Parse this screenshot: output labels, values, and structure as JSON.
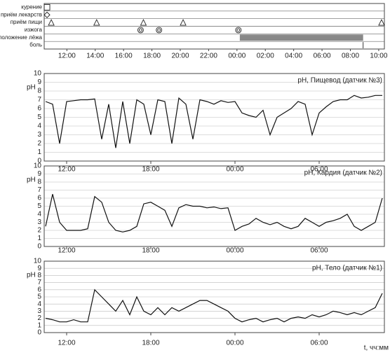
{
  "chart_data": [
    {
      "type": "events",
      "xlim": [
        10.4,
        34.4
      ],
      "xticks": [
        {
          "value": 12,
          "label": "12:00"
        },
        {
          "value": 14,
          "label": "14:00"
        },
        {
          "value": 16,
          "label": "16:00"
        },
        {
          "value": 18,
          "label": "18:00"
        },
        {
          "value": 20,
          "label": "20:00"
        },
        {
          "value": 22,
          "label": "22:00"
        },
        {
          "value": 24,
          "label": "00:00"
        },
        {
          "value": 26,
          "label": "02:00"
        },
        {
          "value": 28,
          "label": "04:00"
        },
        {
          "value": 30,
          "label": "06:00"
        },
        {
          "value": 32,
          "label": "08:00"
        },
        {
          "value": 34,
          "label": "10:00"
        }
      ],
      "rows": [
        {
          "name": "курение",
          "shape": "square",
          "x": [
            10.6
          ]
        },
        {
          "name": "приём лекарств",
          "shape": "diamond",
          "x": [
            10.6
          ]
        },
        {
          "name": "приём пищи",
          "shape": "triangle",
          "x": [
            10.9,
            14.1,
            17.4,
            20.2,
            34.2
          ]
        },
        {
          "name": "изжога",
          "shape": "circle",
          "x": [
            17.2,
            18.5,
            24.1
          ]
        },
        {
          "name": "положение лёжа",
          "shape": "bar",
          "spans": [
            [
              24.2,
              32.9
            ]
          ]
        },
        {
          "name": "боль",
          "shape": "tick",
          "x": [
            32.9
          ]
        }
      ]
    },
    {
      "type": "line",
      "title": "pH, Пищевод (датчик №3)",
      "ylabel": "pH",
      "color": "#111",
      "xlim": [
        10.4,
        34.65
      ],
      "ylim": [
        0,
        10
      ],
      "yticks": [
        0,
        1,
        2,
        3,
        4,
        5,
        6,
        7,
        8,
        9,
        10
      ],
      "xticks": [
        {
          "value": 12,
          "label": "12:00"
        },
        {
          "value": 18,
          "label": "18:00"
        },
        {
          "value": 24,
          "label": "00:00"
        },
        {
          "value": 30,
          "label": "06:00"
        }
      ],
      "x": [
        10.5,
        11,
        11.5,
        12,
        12.5,
        13,
        13.5,
        14,
        14.5,
        15,
        15.5,
        16,
        16.5,
        17,
        17.5,
        18,
        18.5,
        19,
        19.5,
        20,
        20.5,
        21,
        21.5,
        22,
        22.5,
        23,
        23.5,
        24,
        24.5,
        25,
        25.5,
        26,
        26.5,
        27,
        27.5,
        28,
        28.5,
        29,
        29.5,
        30,
        30.5,
        31,
        31.5,
        32,
        32.5,
        33,
        33.5,
        34,
        34.5
      ],
      "values": [
        6.8,
        6.5,
        2,
        6.8,
        6.9,
        7,
        7,
        7.1,
        2.5,
        6.5,
        1.5,
        6.8,
        2,
        7,
        6.5,
        3,
        7,
        6.8,
        2,
        7.2,
        6.5,
        2.5,
        7,
        6.8,
        6.5,
        6.9,
        6.7,
        6.8,
        5.5,
        5.2,
        5,
        5.8,
        3,
        5,
        5.5,
        6,
        6.8,
        6.5,
        3,
        5.5,
        6.2,
        6.8,
        7,
        7,
        7.5,
        7.2,
        7.3,
        7.5,
        7.5
      ]
    },
    {
      "type": "line",
      "title": "pH, Кардия (датчик №2)",
      "ylabel": "pH",
      "color": "#111",
      "xlim": [
        10.4,
        34.65
      ],
      "ylim": [
        0,
        10
      ],
      "yticks": [
        0,
        1,
        2,
        3,
        4,
        5,
        6,
        7,
        8,
        9,
        10
      ],
      "xticks": [
        {
          "value": 12,
          "label": "12:00"
        },
        {
          "value": 18,
          "label": "18:00"
        },
        {
          "value": 24,
          "label": "00:00"
        },
        {
          "value": 30,
          "label": "06:00"
        }
      ],
      "x": [
        10.5,
        11,
        11.5,
        12,
        12.5,
        13,
        13.5,
        14,
        14.5,
        15,
        15.5,
        16,
        16.5,
        17,
        17.5,
        18,
        18.5,
        19,
        19.5,
        20,
        20.5,
        21,
        21.5,
        22,
        22.5,
        23,
        23.5,
        24,
        24.5,
        25,
        25.5,
        26,
        26.5,
        27,
        27.5,
        28,
        28.5,
        29,
        29.5,
        30,
        30.5,
        31,
        31.5,
        32,
        32.5,
        33,
        33.5,
        34,
        34.5
      ],
      "values": [
        2.5,
        6.5,
        3,
        2,
        2,
        2,
        2.2,
        6.2,
        5.5,
        3,
        2,
        1.8,
        2,
        2.5,
        5.3,
        5.5,
        5,
        4.5,
        2.5,
        4.8,
        5.2,
        5,
        5,
        4.8,
        4.9,
        4.7,
        4.8,
        2,
        2.5,
        2.8,
        3.5,
        3,
        2.7,
        3,
        2.5,
        2.2,
        2.5,
        3.5,
        3,
        2.5,
        3,
        3.2,
        3.5,
        4,
        2.5,
        2,
        2.5,
        3,
        6
      ]
    },
    {
      "type": "line",
      "title": "pH, Тело (датчик №1)",
      "ylabel": "pH",
      "xlabel": "t, чч:мм",
      "color": "#111",
      "xlim": [
        10.4,
        34.65
      ],
      "ylim": [
        0,
        10
      ],
      "yticks": [
        0,
        1,
        2,
        3,
        4,
        5,
        6,
        7,
        8,
        9,
        10
      ],
      "xticks": [
        {
          "value": 12,
          "label": "12:00"
        },
        {
          "value": 18,
          "label": "18:00"
        },
        {
          "value": 24,
          "label": "00:00"
        },
        {
          "value": 30,
          "label": "06:00"
        }
      ],
      "x": [
        10.5,
        11,
        11.5,
        12,
        12.5,
        13,
        13.5,
        14,
        14.5,
        15,
        15.5,
        16,
        16.5,
        17,
        17.5,
        18,
        18.5,
        19,
        19.5,
        20,
        20.5,
        21,
        21.5,
        22,
        22.5,
        23,
        23.5,
        24,
        24.5,
        25,
        25.5,
        26,
        26.5,
        27,
        27.5,
        28,
        28.5,
        29,
        29.5,
        30,
        30.5,
        31,
        31.5,
        32,
        32.5,
        33,
        33.5,
        34,
        34.5
      ],
      "values": [
        2,
        1.8,
        1.5,
        1.5,
        1.8,
        1.5,
        1.5,
        6,
        5,
        4,
        3,
        4.5,
        2.5,
        5,
        3,
        2.5,
        3.5,
        2.5,
        3.5,
        3,
        3.5,
        4,
        4.5,
        4.5,
        4,
        3.5,
        3,
        2,
        1.5,
        1.8,
        2,
        1.5,
        1.8,
        2,
        1.5,
        2,
        2.2,
        2,
        2.5,
        2.2,
        2.5,
        3,
        2.8,
        2.5,
        2.8,
        2.5,
        3,
        3.5,
        5.5
      ]
    }
  ]
}
